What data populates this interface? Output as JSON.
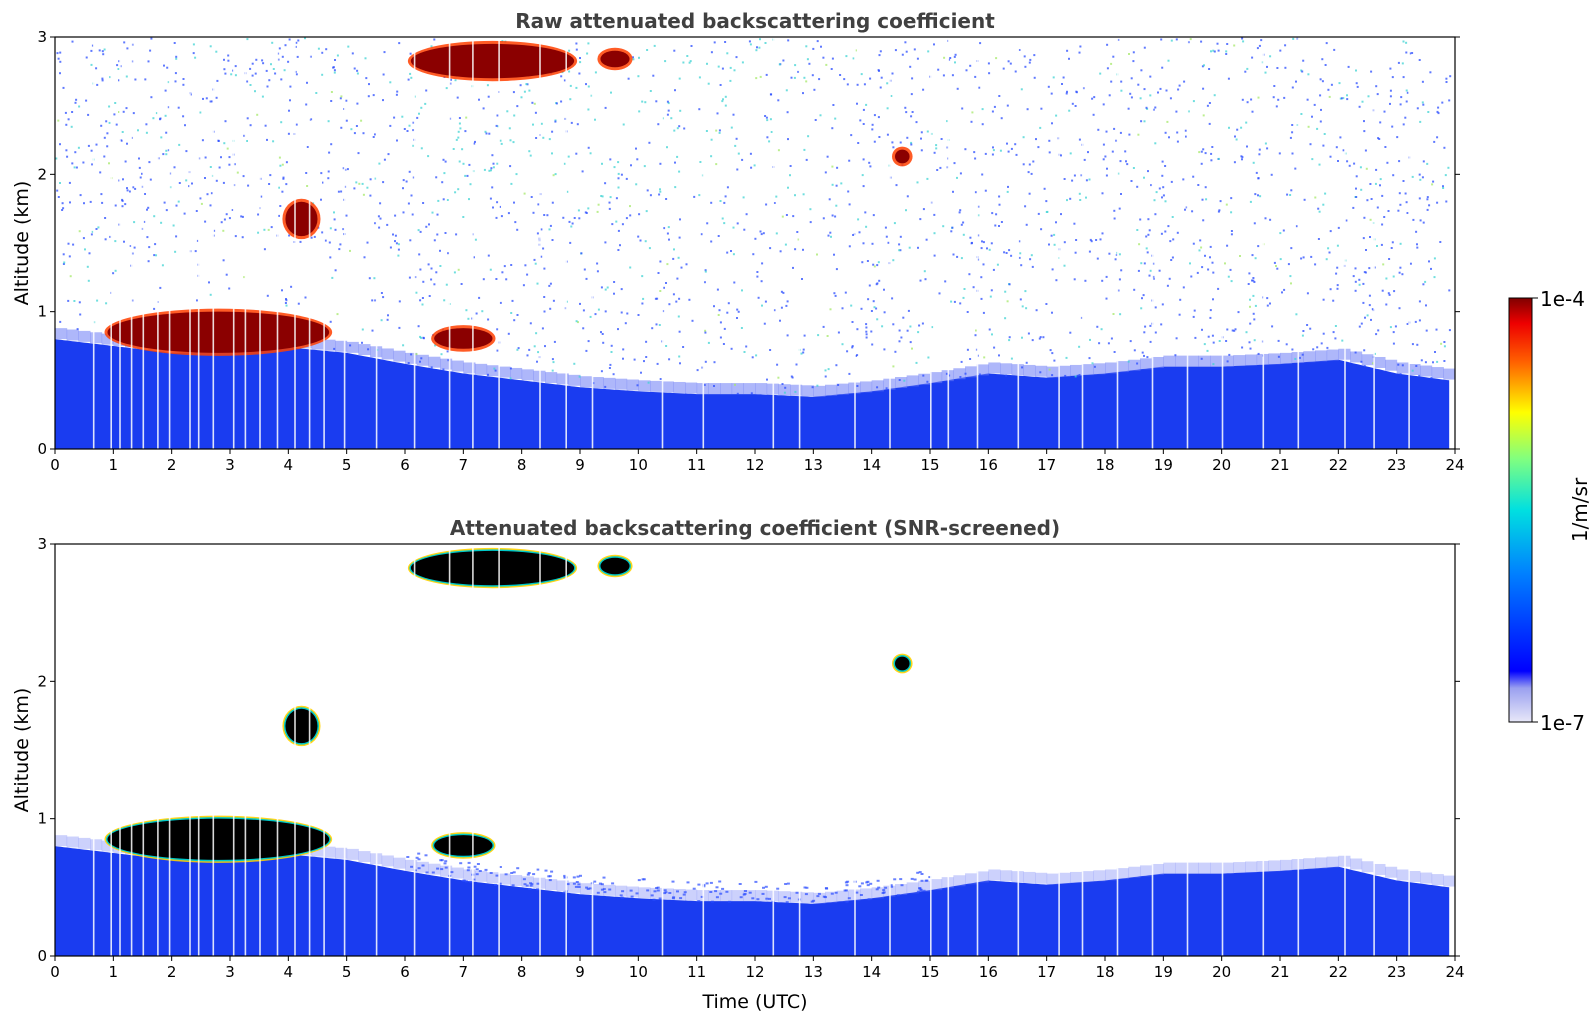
{
  "chart_data": [
    {
      "type": "heatmap",
      "title": "Raw attenuated backscattering coefficient",
      "xlabel": "",
      "ylabel": "Altitude (km)",
      "xlim": [
        0,
        24
      ],
      "ylim": [
        0,
        3
      ],
      "xticks": [
        "0",
        "1",
        "2",
        "3",
        "4",
        "5",
        "6",
        "7",
        "8",
        "9",
        "10",
        "11",
        "12",
        "13",
        "14",
        "15",
        "16",
        "17",
        "18",
        "19",
        "20",
        "21",
        "22",
        "23",
        "24"
      ],
      "yticks": [
        "0",
        "1",
        "2",
        "3"
      ],
      "boundary_layer_top_km": [
        {
          "t": 0,
          "h": 0.8
        },
        {
          "t": 1,
          "h": 0.75
        },
        {
          "t": 2,
          "h": 0.7
        },
        {
          "t": 3,
          "h": 0.72
        },
        {
          "t": 4,
          "h": 0.74
        },
        {
          "t": 5,
          "h": 0.7
        },
        {
          "t": 6,
          "h": 0.62
        },
        {
          "t": 7,
          "h": 0.55
        },
        {
          "t": 8,
          "h": 0.5
        },
        {
          "t": 9,
          "h": 0.45
        },
        {
          "t": 10,
          "h": 0.42
        },
        {
          "t": 11,
          "h": 0.4
        },
        {
          "t": 12,
          "h": 0.4
        },
        {
          "t": 13,
          "h": 0.38
        },
        {
          "t": 14,
          "h": 0.42
        },
        {
          "t": 15,
          "h": 0.48
        },
        {
          "t": 16,
          "h": 0.55
        },
        {
          "t": 17,
          "h": 0.52
        },
        {
          "t": 18,
          "h": 0.55
        },
        {
          "t": 19,
          "h": 0.6
        },
        {
          "t": 20,
          "h": 0.6
        },
        {
          "t": 21,
          "h": 0.62
        },
        {
          "t": 22,
          "h": 0.65
        },
        {
          "t": 23,
          "h": 0.55
        },
        {
          "t": 23.9,
          "h": 0.5
        }
      ],
      "cloud_layers": [
        {
          "t_start": 0.9,
          "t_end": 4.7,
          "h_bottom": 0.7,
          "h_top": 1.0
        },
        {
          "t_start": 3.95,
          "t_end": 4.5,
          "h_bottom": 1.55,
          "h_top": 1.8
        },
        {
          "t_start": 6.1,
          "t_end": 8.9,
          "h_bottom": 2.7,
          "h_top": 2.95
        },
        {
          "t_start": 9.35,
          "t_end": 9.85,
          "h_bottom": 2.78,
          "h_top": 2.9
        },
        {
          "t_start": 6.5,
          "t_end": 7.5,
          "h_bottom": 0.73,
          "h_top": 0.88
        },
        {
          "t_start": 14.4,
          "t_end": 14.65,
          "h_bottom": 2.08,
          "h_top": 2.18
        }
      ]
    },
    {
      "type": "heatmap",
      "title": "Attenuated backscattering coefficient (SNR-screened)",
      "xlabel": "Time (UTC)",
      "ylabel": "Altitude (km)",
      "xlim": [
        0,
        24
      ],
      "ylim": [
        0,
        3
      ],
      "xticks": [
        "0",
        "1",
        "2",
        "3",
        "4",
        "5",
        "6",
        "7",
        "8",
        "9",
        "10",
        "11",
        "12",
        "13",
        "14",
        "15",
        "16",
        "17",
        "18",
        "19",
        "20",
        "21",
        "22",
        "23",
        "24"
      ],
      "yticks": [
        "0",
        "1",
        "2",
        "3"
      ]
    }
  ],
  "colorbar": {
    "label": "1/m/sr",
    "min_label": "1e-7",
    "max_label": "1e-4",
    "colormap": "jet"
  },
  "colors": {
    "surface_layer": "#1a3cf0",
    "cloud_core": "#8b0000",
    "screened_cloud_core": "#000000",
    "noise_blue": "#2a4cff",
    "noise_cyan": "#3fd3d3"
  }
}
